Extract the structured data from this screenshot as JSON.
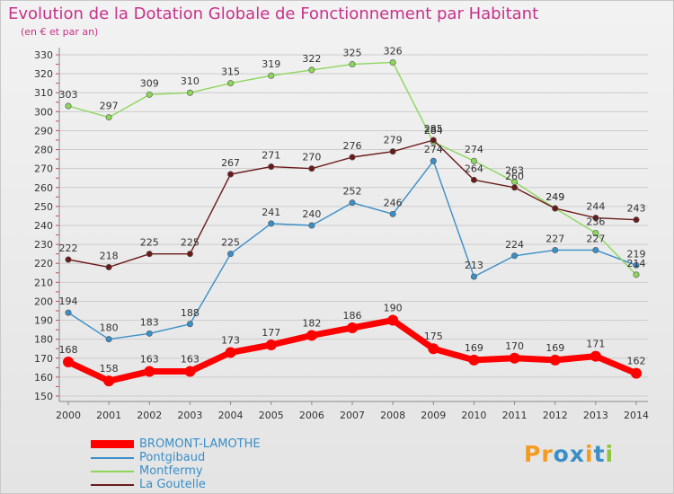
{
  "title": "Evolution de la Dotation Globale de Fonctionnement par Habitant",
  "subtitle": "(en € et par an)",
  "logo": {
    "text": "Proxiti",
    "letters": [
      "P",
      "r",
      "o",
      "x",
      "i",
      "t",
      "i"
    ],
    "colors": [
      "#f39c1f",
      "#f39c1f",
      "#3a8fc7",
      "#3a8fc7",
      "#f39c1f",
      "#3a8fc7",
      "#8cc63f"
    ]
  },
  "colors": {
    "title": "#c8318a",
    "axis": "#888888",
    "tick_marks": "#d04060",
    "grid": "#cccccc"
  },
  "chart_data": {
    "type": "line",
    "title": "Evolution de la Dotation Globale de Fonctionnement par Habitant",
    "ylabel": "(en € et par an)",
    "xlabel": "",
    "ylim": [
      150,
      330
    ],
    "ytick_step": 10,
    "grid": "horizontal",
    "legend_position": "bottom-left",
    "x": [
      "2000",
      "2001",
      "2002",
      "2003",
      "2004",
      "2005",
      "2006",
      "2007",
      "2008",
      "2009",
      "2010",
      "2011",
      "2012",
      "2013",
      "2014"
    ],
    "series": [
      {
        "name": "BROMONT-LAMOTHE",
        "color": "#ff0000",
        "emphasis": true,
        "values": [
          168,
          158,
          163,
          163,
          173,
          177,
          182,
          186,
          190,
          175,
          169,
          170,
          169,
          171,
          162
        ]
      },
      {
        "name": "Pontgibaud",
        "color": "#3a8fc7",
        "emphasis": false,
        "values": [
          194,
          180,
          183,
          188,
          225,
          241,
          240,
          252,
          246,
          274,
          213,
          224,
          227,
          227,
          219
        ]
      },
      {
        "name": "Montfermy",
        "color": "#8cd65a",
        "emphasis": false,
        "values": [
          303,
          297,
          309,
          310,
          315,
          319,
          322,
          325,
          326,
          284,
          274,
          263,
          249,
          236,
          214
        ]
      },
      {
        "name": "La Goutelle",
        "color": "#6b1a1a",
        "emphasis": false,
        "values": [
          222,
          218,
          225,
          225,
          267,
          271,
          270,
          276,
          279,
          285,
          264,
          260,
          249,
          244,
          243
        ]
      }
    ]
  }
}
